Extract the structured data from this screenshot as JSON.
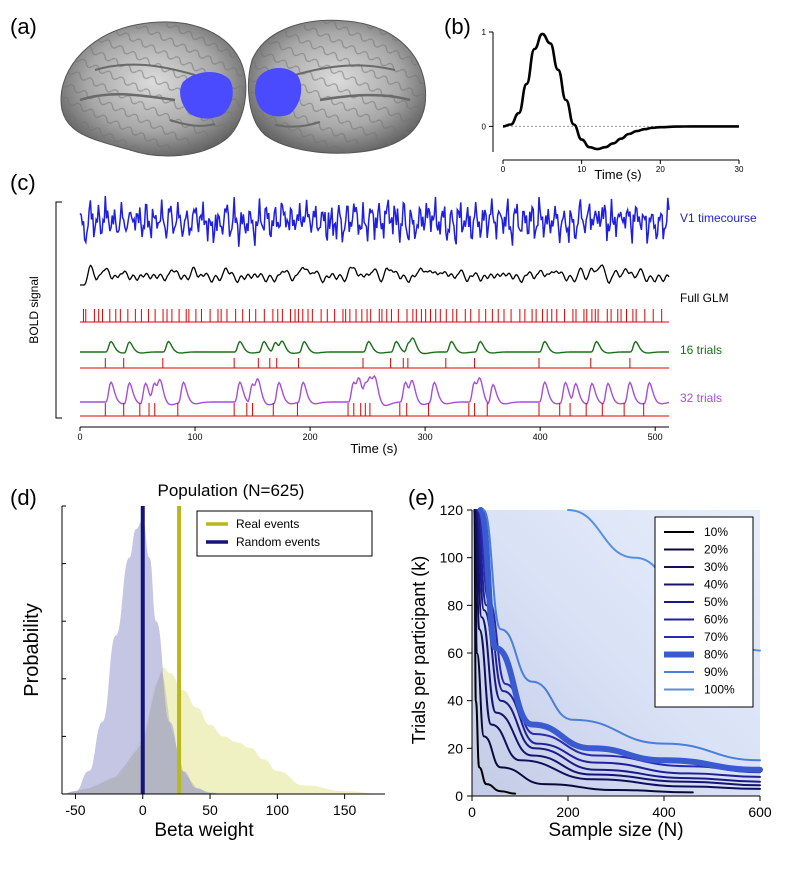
{
  "panels": {
    "a": {
      "label": "(a)"
    },
    "b": {
      "label": "(b)"
    },
    "c": {
      "label": "(c)"
    },
    "d": {
      "label": "(d)"
    },
    "e": {
      "label": "(e)"
    }
  },
  "colors": {
    "v1_blue": "#1f1fe0",
    "glm_black": "#000000",
    "trials16_green": "#1a6e1a",
    "trials32_purple": "#a64fd6",
    "event_red": "#e00000",
    "real_gold": "#b8b81a",
    "random_navy": "#14147a",
    "brain_highlight": "#4a4aff"
  },
  "chart_data": [
    {
      "panel": "b",
      "type": "line",
      "title": "",
      "xlabel": "Time (s)",
      "ylabel": "",
      "xlim": [
        0,
        30
      ],
      "ylim": [
        -0.25,
        1
      ],
      "xticks": [
        "0",
        "10",
        "20",
        "30"
      ],
      "yticks": [
        "0",
        "1"
      ],
      "series": [
        {
          "x": [
            0,
            1,
            2,
            3,
            4,
            5,
            6,
            7,
            8,
            9,
            10,
            11,
            12,
            13,
            14,
            15,
            16,
            17,
            18,
            19,
            20,
            22,
            24,
            26,
            28,
            30
          ],
          "y": [
            0,
            0.02,
            0.14,
            0.45,
            0.82,
            0.98,
            0.88,
            0.6,
            0.28,
            0.02,
            -0.14,
            -0.22,
            -0.24,
            -0.22,
            -0.18,
            -0.13,
            -0.08,
            -0.05,
            -0.03,
            -0.015,
            -0.008,
            -0.002,
            0,
            0,
            0,
            0
          ]
        }
      ],
      "reference_line": {
        "y": 0,
        "style": "dotted"
      }
    },
    {
      "panel": "c",
      "type": "line",
      "ylabel": "BOLD signal",
      "xlabel": "Time (s)",
      "xlim": [
        0,
        512
      ],
      "xticks": [
        "0",
        "100",
        "200",
        "300",
        "400",
        "500"
      ],
      "series_labels": {
        "v1": "V1 timecourse",
        "glm": "Full GLM",
        "t16": "16 trials",
        "t32": "32 trials"
      },
      "events_16": [
        22,
        38,
        72,
        134,
        155,
        165,
        171,
        190,
        246,
        270,
        281,
        285,
        318,
        343,
        399,
        444,
        478
      ],
      "events_32": [
        22,
        38,
        52,
        60,
        65,
        85,
        134,
        145,
        150,
        168,
        189,
        233,
        238,
        244,
        248,
        252,
        278,
        284,
        303,
        338,
        343,
        354,
        399,
        417,
        426,
        440,
        454,
        473,
        490
      ]
    },
    {
      "panel": "d",
      "type": "area",
      "title": "Population (N=625)",
      "xlabel": "Beta weight",
      "ylabel": "Probability",
      "xlim": [
        -60,
        180
      ],
      "xticks": [
        "-50",
        "0",
        "50",
        "100",
        "150"
      ],
      "legend": {
        "placement": "top-right",
        "entries": [
          "Real events",
          "Random events"
        ]
      },
      "series": [
        {
          "name": "Random events",
          "x": [
            -60,
            -50,
            -40,
            -30,
            -20,
            -10,
            -5,
            0,
            5,
            10,
            20,
            30,
            40,
            50,
            60
          ],
          "y": [
            0,
            0.01,
            0.08,
            0.25,
            0.55,
            0.82,
            0.92,
            0.95,
            0.82,
            0.6,
            0.25,
            0.08,
            0.02,
            0.005,
            0
          ]
        },
        {
          "name": "Real events",
          "x": [
            -60,
            -40,
            -20,
            0,
            10,
            15,
            20,
            30,
            40,
            50,
            60,
            70,
            80,
            90,
            100,
            120,
            150,
            180
          ],
          "y": [
            0,
            0.02,
            0.06,
            0.18,
            0.38,
            0.44,
            0.42,
            0.36,
            0.3,
            0.24,
            0.2,
            0.18,
            0.16,
            0.12,
            0.08,
            0.03,
            0.01,
            0
          ]
        }
      ],
      "vlines": [
        {
          "name": "Random events",
          "x": 0
        },
        {
          "name": "Real events",
          "x": 27
        }
      ]
    },
    {
      "panel": "e",
      "type": "line",
      "xlabel": "Sample size (N)",
      "ylabel": "Trials per participant (k)",
      "xlim": [
        0,
        600
      ],
      "ylim": [
        0,
        120
      ],
      "xticks": [
        "0",
        "200",
        "400",
        "600"
      ],
      "yticks": [
        "0",
        "20",
        "40",
        "60",
        "80",
        "100",
        "120"
      ],
      "legend": {
        "placement": "top-right"
      },
      "series": [
        {
          "name": "10%",
          "x": [
            5,
            8,
            15,
            30,
            60,
            90
          ],
          "y": [
            120,
            40,
            12,
            5,
            2,
            1
          ]
        },
        {
          "name": "20%",
          "x": [
            6,
            10,
            25,
            60,
            150,
            300,
            460
          ],
          "y": [
            120,
            60,
            25,
            12,
            5,
            2.5,
            1.5
          ]
        },
        {
          "name": "30%",
          "x": [
            7,
            15,
            40,
            100,
            250,
            450,
            600
          ],
          "y": [
            120,
            70,
            30,
            15,
            7,
            4,
            3
          ]
        },
        {
          "name": "40%",
          "x": [
            8,
            20,
            50,
            125,
            250,
            450,
            600
          ],
          "y": [
            120,
            75,
            35,
            17,
            9,
            6,
            4.5
          ]
        },
        {
          "name": "50%",
          "x": [
            9,
            25,
            60,
            130,
            260,
            450,
            600
          ],
          "y": [
            120,
            78,
            40,
            20,
            11,
            7.5,
            6
          ]
        },
        {
          "name": "60%",
          "x": [
            10,
            30,
            65,
            135,
            260,
            450,
            600
          ],
          "y": [
            120,
            80,
            44,
            22,
            14,
            9.5,
            8
          ]
        },
        {
          "name": "70%",
          "x": [
            12,
            35,
            70,
            130,
            260,
            450,
            600
          ],
          "y": [
            120,
            82,
            47,
            26,
            17,
            12.5,
            10
          ]
        },
        {
          "name": "80%",
          "x": [
            18,
            50,
            125,
            250,
            400,
            600
          ],
          "y": [
            120,
            62,
            30,
            20,
            15,
            11
          ]
        },
        {
          "name": "90%",
          "x": [
            24,
            60,
            125,
            210,
            400,
            600
          ],
          "y": [
            120,
            70,
            48,
            32,
            22,
            15
          ]
        },
        {
          "name": "100%",
          "x": [
            200,
            340,
            470,
            600
          ],
          "y": [
            120,
            100,
            78,
            61
          ]
        }
      ]
    }
  ]
}
